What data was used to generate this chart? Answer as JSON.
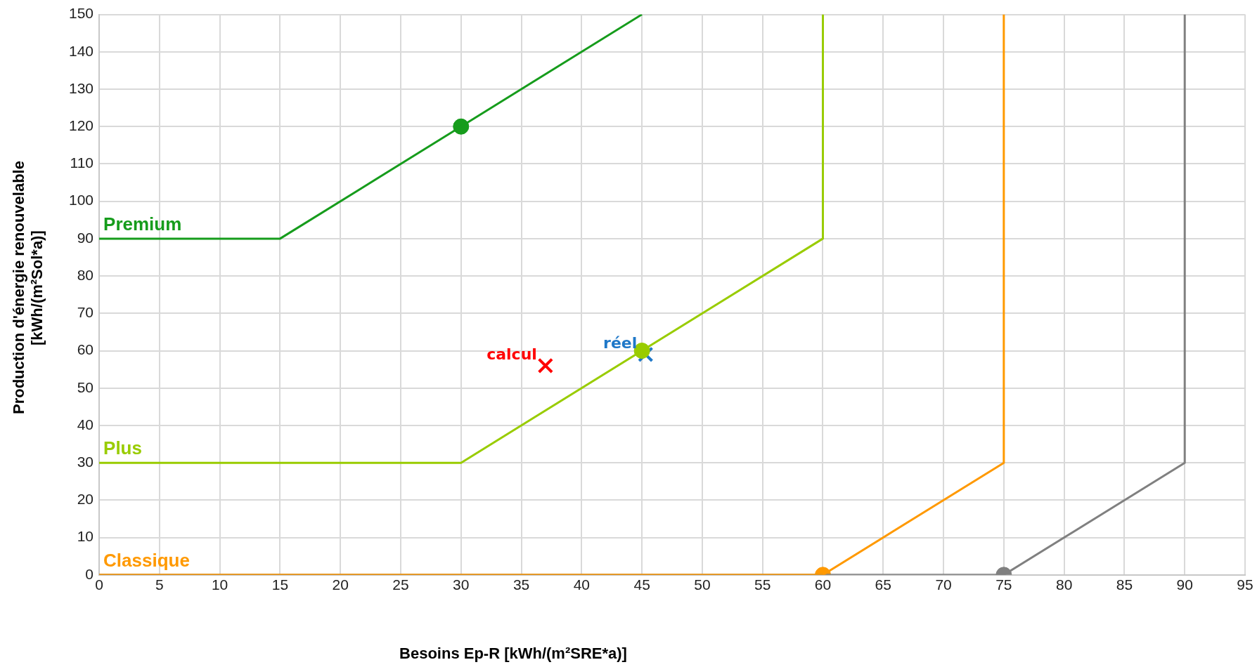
{
  "chart_data": {
    "type": "line",
    "xlabel": "Besoins Ep-R [kWh/(m²SRE*a)]",
    "ylabel": "Production d'énergie renouvelable [kWh/(m²Sol*a)]",
    "xlim": [
      0,
      95
    ],
    "xticks": [
      0,
      5,
      10,
      15,
      20,
      25,
      30,
      35,
      40,
      45,
      50,
      55,
      60,
      65,
      70,
      75,
      80,
      85,
      90,
      95
    ],
    "ylim": [
      0,
      150
    ],
    "yticks": [
      0,
      10,
      20,
      30,
      40,
      50,
      60,
      70,
      80,
      90,
      100,
      110,
      120,
      130,
      140,
      150
    ],
    "grid": true,
    "legend": false,
    "marker": "none",
    "line_style": "solid",
    "series": [
      {
        "name": "Premium",
        "color": "#169c1c",
        "x": [
          0,
          15,
          30,
          45
        ],
        "values": [
          90,
          90,
          120,
          150
        ]
      },
      {
        "name": "Plus",
        "color": "#99cc00",
        "x": [
          0,
          30,
          60,
          60
        ],
        "values": [
          30,
          30,
          90,
          150
        ]
      },
      {
        "name": "Classique",
        "color": "#ff9900",
        "x": [
          0,
          60,
          75,
          75
        ],
        "values": [
          0,
          0,
          30,
          150
        ]
      },
      {
        "color": "#808080",
        "x": [
          0,
          75,
          90,
          90
        ],
        "values": [
          0,
          0,
          30,
          150
        ]
      },
      {
        "type": "scatter",
        "marker": "circle",
        "color": "#169c1c",
        "x": [
          30
        ],
        "values": [
          120
        ]
      },
      {
        "type": "scatter",
        "marker": "circle",
        "color": "#99cc00",
        "x": [
          45
        ],
        "values": [
          60
        ]
      },
      {
        "type": "scatter",
        "marker": "circle",
        "color": "#ff9900",
        "x": [
          60
        ],
        "values": [
          0
        ]
      },
      {
        "type": "scatter",
        "marker": "circle",
        "color": "#808080",
        "x": [
          75
        ],
        "values": [
          0
        ]
      },
      {
        "name": "calcul",
        "type": "scatter",
        "marker": "cross",
        "color": "#ff0000",
        "x": [
          37
        ],
        "values": [
          56
        ]
      },
      {
        "name": "réel",
        "type": "scatter",
        "marker": "cross",
        "color": "#1f78c8",
        "x": [
          45.3
        ],
        "values": [
          59
        ]
      }
    ]
  }
}
